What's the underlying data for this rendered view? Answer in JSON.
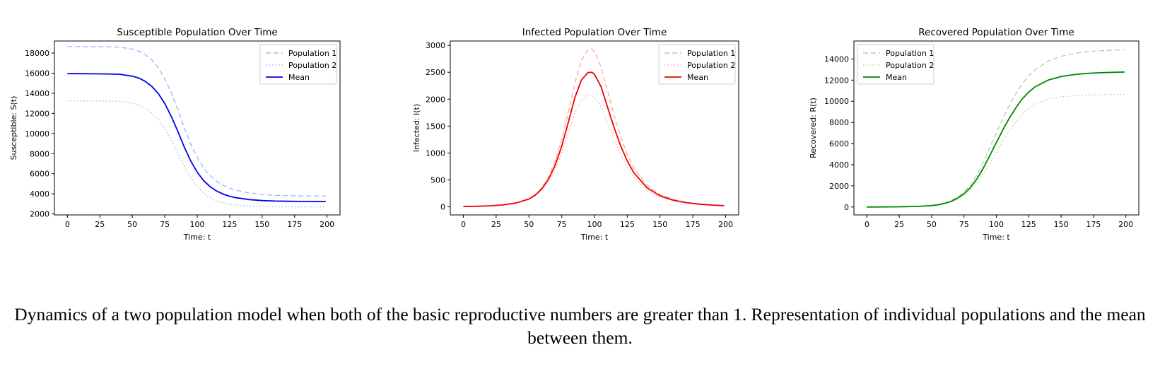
{
  "caption": "Dynamics of a two population model when both of the basic reproductive numbers are greater than 1. Representation of individual populations and the mean between them.",
  "chart_data": [
    {
      "type": "line",
      "title": "Susceptible Population Over Time",
      "xlabel": "Time: t",
      "ylabel": "Susceptible: S(t)",
      "xlim": [
        -10,
        210
      ],
      "ylim": [
        1900,
        19200
      ],
      "xticks": [
        0,
        25,
        50,
        75,
        100,
        125,
        150,
        175,
        200
      ],
      "yticks": [
        2000,
        4000,
        6000,
        8000,
        10000,
        12000,
        14000,
        16000,
        18000
      ],
      "legend": "top-right",
      "grid": false,
      "x": [
        0,
        10,
        20,
        30,
        40,
        50,
        55,
        60,
        65,
        70,
        75,
        80,
        85,
        90,
        95,
        100,
        105,
        110,
        115,
        120,
        125,
        130,
        140,
        150,
        160,
        170,
        180,
        190,
        199
      ],
      "series": [
        {
          "name": "Population 1",
          "color": "#b0b0ff",
          "style": "dashed",
          "values": [
            18650,
            18649,
            18640,
            18620,
            18590,
            18390,
            18200,
            17850,
            17320,
            16550,
            15450,
            14050,
            12400,
            10600,
            8950,
            7600,
            6550,
            5800,
            5250,
            4850,
            4550,
            4350,
            4080,
            3930,
            3850,
            3810,
            3790,
            3780,
            3775
          ]
        },
        {
          "name": "Population 2",
          "color": "#b0b0ff",
          "style": "dotted",
          "values": [
            13250,
            13249,
            13240,
            13220,
            13200,
            13010,
            12830,
            12520,
            12060,
            11400,
            10500,
            9350,
            8050,
            6750,
            5600,
            4700,
            4050,
            3600,
            3300,
            3100,
            2960,
            2870,
            2770,
            2730,
            2710,
            2700,
            2695,
            2692,
            2690
          ]
        },
        {
          "name": "Mean",
          "color": "#0000ee",
          "style": "solid",
          "values": [
            15950,
            15949,
            15940,
            15920,
            15895,
            15700,
            15515,
            15185,
            14690,
            13975,
            12975,
            11700,
            10225,
            8675,
            7275,
            6150,
            5300,
            4700,
            4275,
            3975,
            3755,
            3610,
            3425,
            3330,
            3280,
            3255,
            3242,
            3236,
            3232
          ]
        }
      ]
    },
    {
      "type": "line",
      "title": "Infected Population Over Time",
      "xlabel": "Time: t",
      "ylabel": "Infected: I(t)",
      "xlim": [
        -10,
        210
      ],
      "ylim": [
        -150,
        3080
      ],
      "xticks": [
        0,
        25,
        50,
        75,
        100,
        125,
        150,
        175,
        200
      ],
      "yticks": [
        0,
        500,
        1000,
        1500,
        2000,
        2500,
        3000
      ],
      "legend": "top-right",
      "grid": false,
      "x": [
        0,
        10,
        20,
        30,
        40,
        50,
        55,
        60,
        65,
        70,
        75,
        80,
        85,
        90,
        95,
        98,
        100,
        105,
        110,
        115,
        120,
        125,
        130,
        140,
        150,
        160,
        170,
        180,
        190,
        199
      ],
      "series": [
        {
          "name": "Population 1",
          "color": "#ffaaaa",
          "style": "dashed",
          "values": [
            5,
            10,
            20,
            35,
            70,
            150,
            230,
            360,
            560,
            850,
            1250,
            1750,
            2300,
            2720,
            2920,
            2930,
            2880,
            2600,
            2150,
            1700,
            1300,
            970,
            720,
            400,
            230,
            140,
            85,
            55,
            35,
            25
          ]
        },
        {
          "name": "Population 2",
          "color": "#ffaaaa",
          "style": "dotted",
          "values": [
            5,
            10,
            20,
            35,
            70,
            140,
            210,
            320,
            470,
            700,
            1000,
            1380,
            1750,
            1990,
            2070,
            2070,
            2040,
            1860,
            1550,
            1240,
            960,
            730,
            550,
            310,
            180,
            110,
            70,
            45,
            30,
            20
          ]
        },
        {
          "name": "Mean",
          "color": "#ee0000",
          "style": "solid",
          "values": [
            5,
            10,
            20,
            35,
            70,
            145,
            220,
            340,
            515,
            775,
            1125,
            1565,
            2025,
            2355,
            2495,
            2500,
            2460,
            2230,
            1850,
            1470,
            1130,
            850,
            635,
            355,
            205,
            125,
            78,
            50,
            33,
            22
          ]
        }
      ]
    },
    {
      "type": "line",
      "title": "Recovered Population Over Time",
      "xlabel": "Time: t",
      "ylabel": "Recovered: R(t)",
      "xlim": [
        -10,
        210
      ],
      "ylim": [
        -750,
        15700
      ],
      "xticks": [
        0,
        25,
        50,
        75,
        100,
        125,
        150,
        175,
        200
      ],
      "yticks": [
        0,
        2000,
        4000,
        6000,
        8000,
        10000,
        12000,
        14000
      ],
      "legend": "top-left",
      "grid": false,
      "x": [
        0,
        10,
        20,
        30,
        40,
        50,
        55,
        60,
        65,
        70,
        75,
        80,
        85,
        90,
        95,
        100,
        105,
        110,
        115,
        120,
        125,
        130,
        140,
        150,
        160,
        170,
        180,
        190,
        199
      ],
      "series": [
        {
          "name": "Population 1",
          "color": "#aad8aa",
          "style": "dashed",
          "values": [
            0,
            5,
            15,
            30,
            60,
            150,
            230,
            380,
            600,
            930,
            1420,
            2100,
            3050,
            4250,
            5600,
            7000,
            8350,
            9600,
            10700,
            11650,
            12400,
            13000,
            13800,
            14250,
            14520,
            14680,
            14780,
            14840,
            14880
          ]
        },
        {
          "name": "Population 2",
          "color": "#aad8aa",
          "style": "dotted",
          "values": [
            0,
            5,
            15,
            30,
            55,
            120,
            190,
            300,
            470,
            720,
            1080,
            1580,
            2270,
            3150,
            4150,
            5200,
            6250,
            7200,
            8050,
            8800,
            9350,
            9750,
            10200,
            10420,
            10530,
            10590,
            10620,
            10640,
            10650
          ]
        },
        {
          "name": "Mean",
          "color": "#008800",
          "style": "solid",
          "values": [
            0,
            5,
            15,
            30,
            58,
            135,
            210,
            340,
            535,
            825,
            1250,
            1840,
            2660,
            3700,
            4875,
            6100,
            7300,
            8400,
            9375,
            10225,
            10875,
            11375,
            12000,
            12335,
            12525,
            12635,
            12700,
            12740,
            12765
          ]
        }
      ]
    }
  ]
}
